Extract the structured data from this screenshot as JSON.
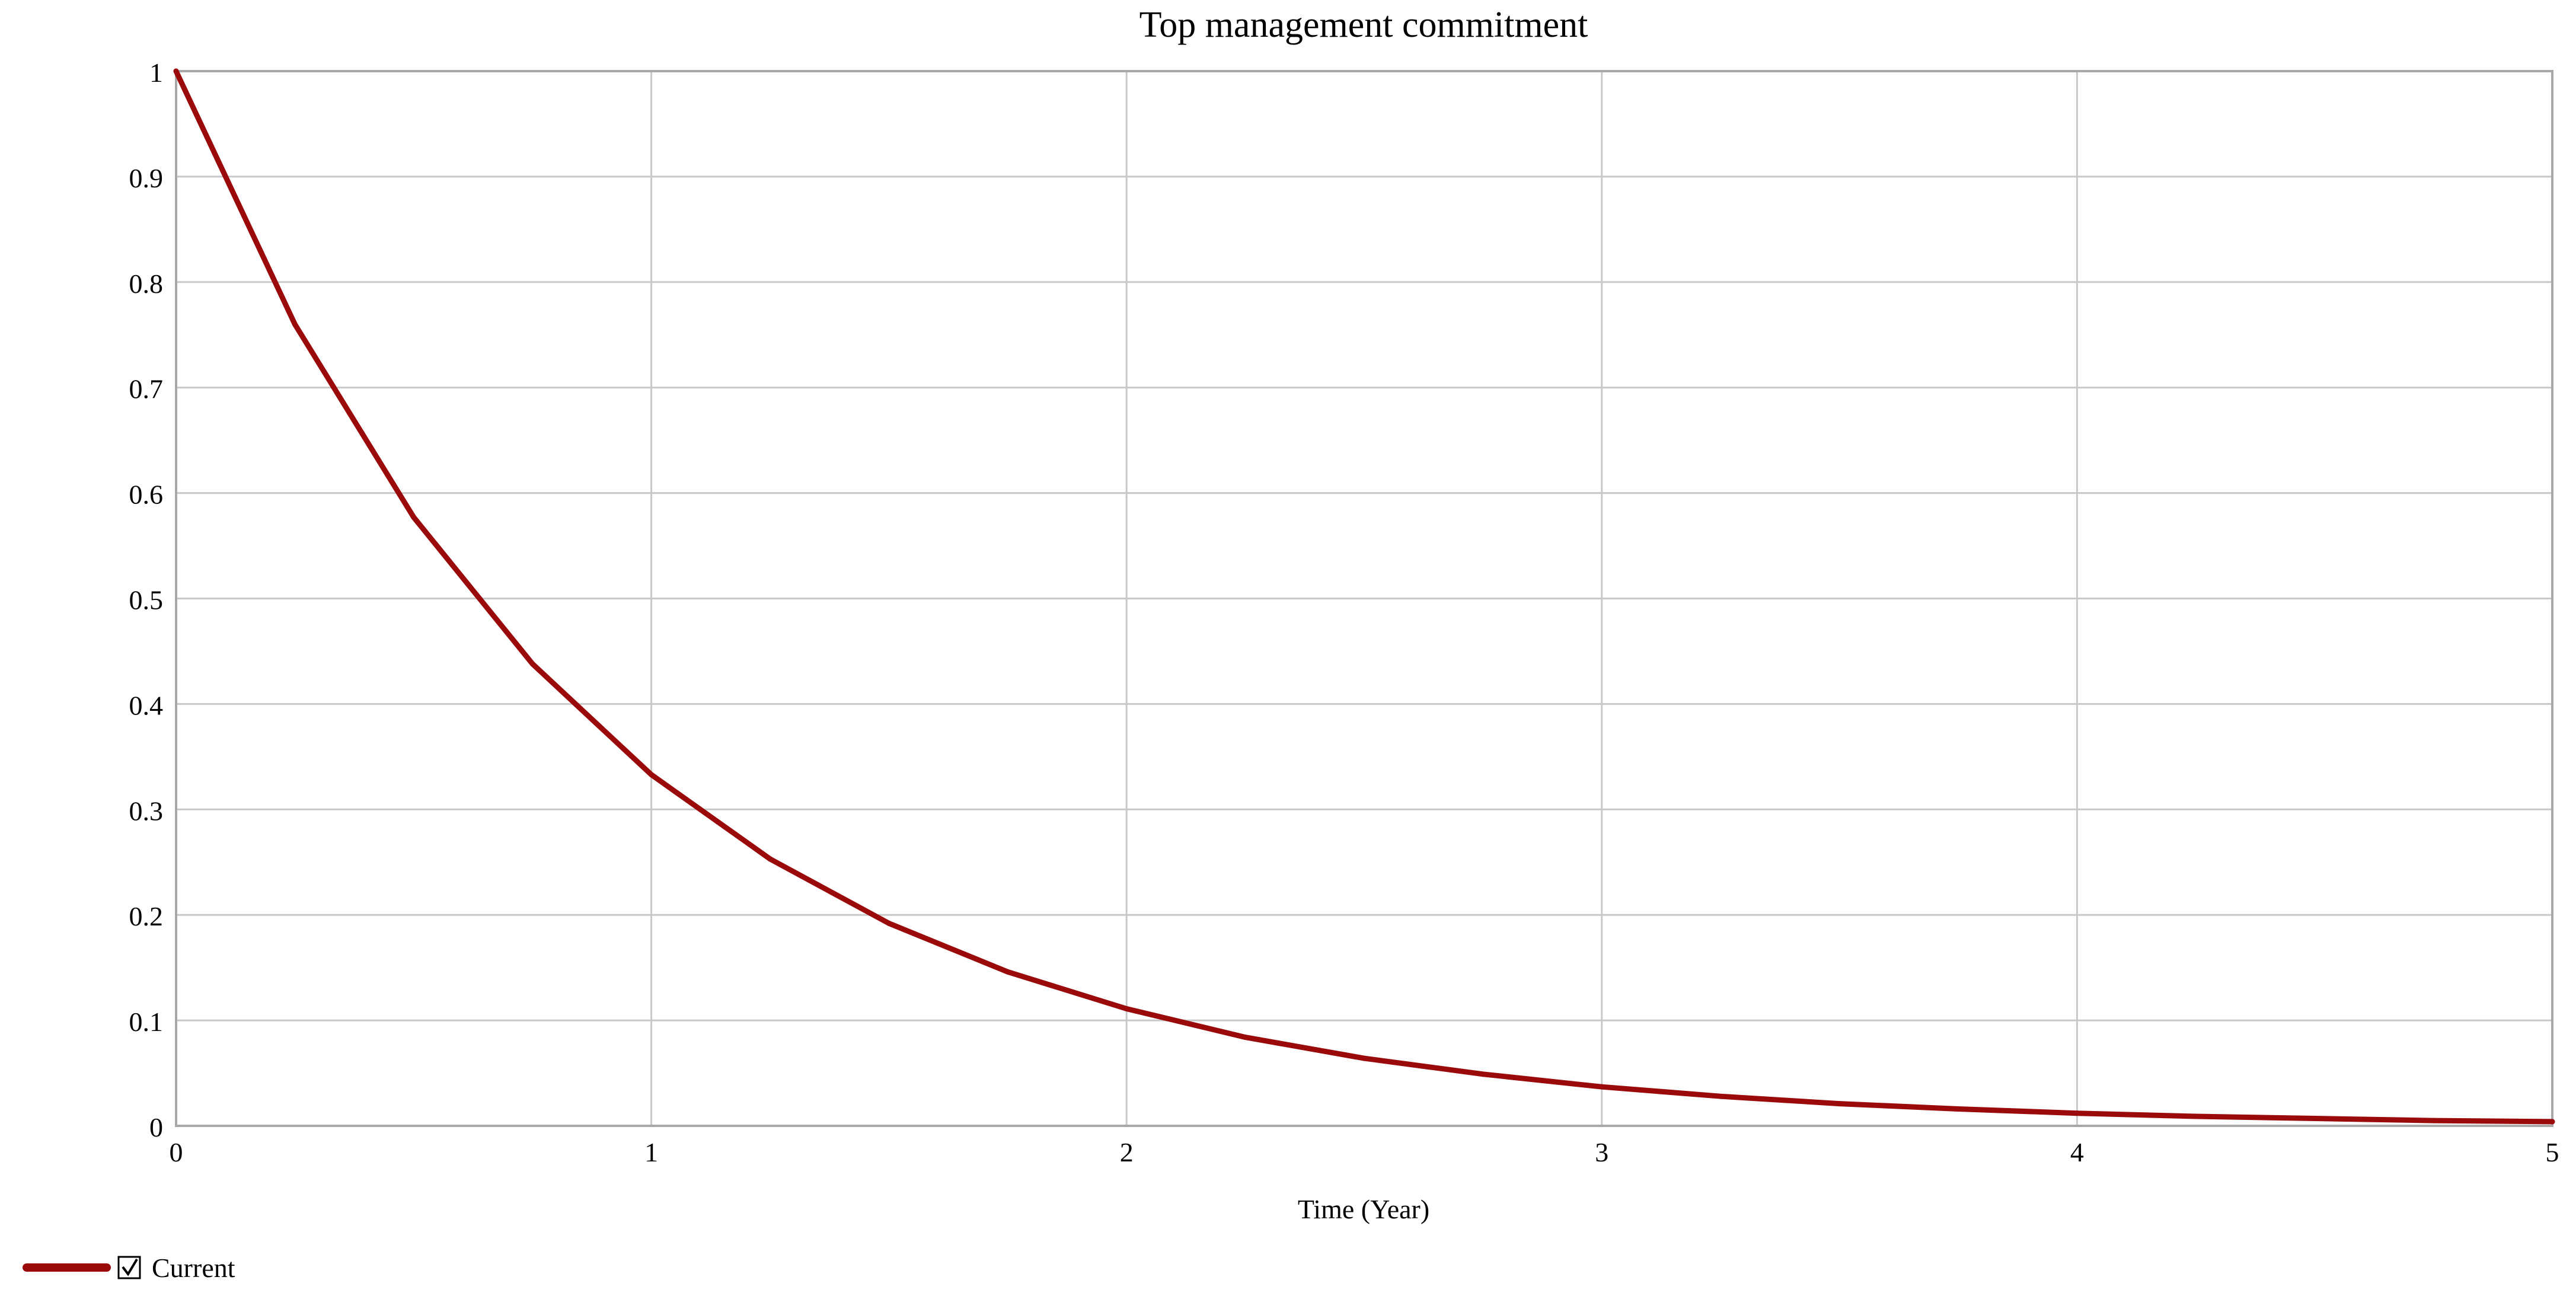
{
  "chart_data": {
    "type": "line",
    "title": "Top management commitment",
    "xlabel": "Time (Year)",
    "ylabel": "",
    "xlim": [
      0,
      5
    ],
    "ylim": [
      0,
      1
    ],
    "xticks": [
      "0",
      "1",
      "2",
      "3",
      "4",
      "5"
    ],
    "yticks": [
      "0",
      "0.1",
      "0.2",
      "0.3",
      "0.4",
      "0.5",
      "0.6",
      "0.7",
      "0.8",
      "0.9",
      "1"
    ],
    "grid": true,
    "legend_position": "bottom-left",
    "series": [
      {
        "name": "Current",
        "color": "#9b0a0a",
        "checked": true,
        "x": [
          0,
          0.25,
          0.5,
          0.75,
          1,
          1.25,
          1.5,
          1.75,
          2,
          2.25,
          2.5,
          2.75,
          3,
          3.25,
          3.5,
          3.75,
          4,
          4.25,
          4.5,
          4.75,
          5
        ],
        "y": [
          1,
          0.76,
          0.577,
          0.438,
          0.333,
          0.253,
          0.192,
          0.146,
          0.111,
          0.084,
          0.064,
          0.049,
          0.037,
          0.028,
          0.021,
          0.016,
          0.012,
          0.009,
          0.007,
          0.005,
          0.004
        ]
      }
    ]
  }
}
